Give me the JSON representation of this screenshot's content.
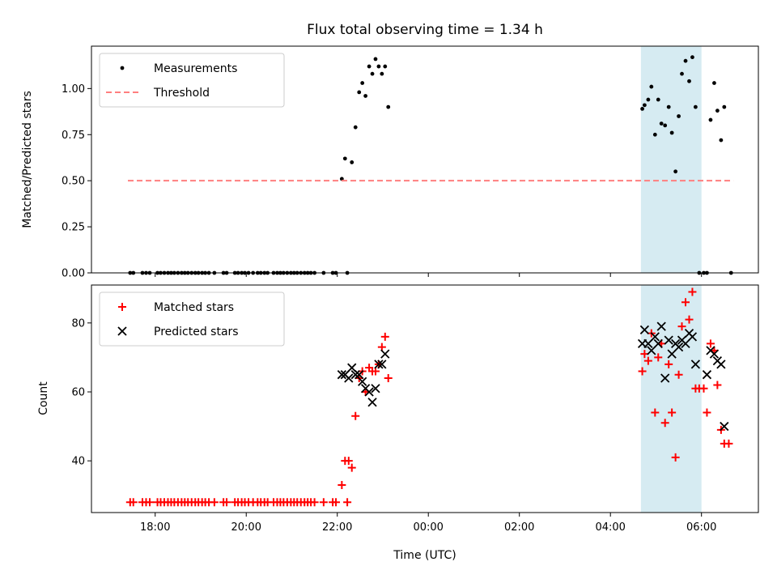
{
  "chart_data": [
    {
      "type": "scatter",
      "title": "Flux total observing time = 1.34 h",
      "xlabel": "",
      "ylabel": "Matched/Predicted stars",
      "ylim": [
        0,
        1.23
      ],
      "x_unit": "hours relative to 00:00 UTC",
      "xlim": [
        -7.4,
        7.25
      ],
      "yticks": [
        "0.00",
        "0.25",
        "0.50",
        "0.75",
        "1.00"
      ],
      "ytick_values": [
        0,
        0.25,
        0.5,
        0.75,
        1.0
      ],
      "legend_location": "upper left",
      "highlight_span": [
        4.67,
        6.0
      ],
      "highlight_color": "#add8e6",
      "series": [
        {
          "name": "Measurements",
          "kind": "dots",
          "color": "#000000",
          "points": [
            [
              -6.55,
              0
            ],
            [
              -6.48,
              0
            ],
            [
              -6.28,
              0
            ],
            [
              -6.2,
              0
            ],
            [
              -6.12,
              0
            ],
            [
              -5.95,
              0
            ],
            [
              -5.88,
              0
            ],
            [
              -5.8,
              0
            ],
            [
              -5.72,
              0
            ],
            [
              -5.65,
              0
            ],
            [
              -5.58,
              0
            ],
            [
              -5.5,
              0
            ],
            [
              -5.42,
              0
            ],
            [
              -5.35,
              0
            ],
            [
              -5.28,
              0
            ],
            [
              -5.2,
              0
            ],
            [
              -5.12,
              0
            ],
            [
              -5.05,
              0
            ],
            [
              -4.97,
              0
            ],
            [
              -4.9,
              0
            ],
            [
              -4.82,
              0
            ],
            [
              -4.7,
              0
            ],
            [
              -4.5,
              0
            ],
            [
              -4.43,
              0
            ],
            [
              -4.25,
              0
            ],
            [
              -4.18,
              0
            ],
            [
              -4.1,
              0
            ],
            [
              -4.03,
              0
            ],
            [
              -3.95,
              0
            ],
            [
              -3.85,
              0
            ],
            [
              -3.75,
              0
            ],
            [
              -3.68,
              0
            ],
            [
              -3.6,
              0
            ],
            [
              -3.53,
              0
            ],
            [
              -3.4,
              0
            ],
            [
              -3.32,
              0
            ],
            [
              -3.25,
              0
            ],
            [
              -3.18,
              0
            ],
            [
              -3.1,
              0
            ],
            [
              -3.02,
              0
            ],
            [
              -2.95,
              0
            ],
            [
              -2.88,
              0
            ],
            [
              -2.8,
              0
            ],
            [
              -2.72,
              0
            ],
            [
              -2.65,
              0
            ],
            [
              -2.58,
              0
            ],
            [
              -2.5,
              0
            ],
            [
              -2.3,
              0
            ],
            [
              -2.1,
              0
            ],
            [
              -2.03,
              0
            ],
            [
              -1.78,
              0
            ],
            [
              -1.9,
              0.51
            ],
            [
              -1.83,
              0.62
            ],
            [
              -1.68,
              0.6
            ],
            [
              -1.6,
              0.79
            ],
            [
              -1.52,
              0.98
            ],
            [
              -1.45,
              1.03
            ],
            [
              -1.38,
              0.96
            ],
            [
              -1.3,
              1.12
            ],
            [
              -1.23,
              1.08
            ],
            [
              -1.16,
              1.16
            ],
            [
              -1.09,
              1.12
            ],
            [
              -1.02,
              1.08
            ],
            [
              -0.95,
              1.12
            ],
            [
              -0.88,
              0.9
            ],
            [
              4.7,
              0.89
            ],
            [
              4.75,
              0.91
            ],
            [
              4.83,
              0.94
            ],
            [
              4.9,
              1.01
            ],
            [
              4.98,
              0.75
            ],
            [
              5.05,
              0.94
            ],
            [
              5.12,
              0.81
            ],
            [
              5.2,
              0.8
            ],
            [
              5.28,
              0.9
            ],
            [
              5.35,
              0.76
            ],
            [
              5.43,
              0.55
            ],
            [
              5.5,
              0.85
            ],
            [
              5.57,
              1.08
            ],
            [
              5.65,
              1.15
            ],
            [
              5.73,
              1.04
            ],
            [
              5.8,
              1.17
            ],
            [
              5.87,
              0.9
            ],
            [
              5.95,
              0
            ],
            [
              6.05,
              0
            ],
            [
              6.12,
              0
            ],
            [
              6.2,
              0.83
            ],
            [
              6.28,
              1.03
            ],
            [
              6.35,
              0.88
            ],
            [
              6.43,
              0.72
            ],
            [
              6.5,
              0.9
            ],
            [
              6.65,
              0
            ]
          ]
        },
        {
          "name": "Threshold",
          "kind": "dashed-line",
          "color": "#ff7f7f",
          "x": [
            -6.6,
            6.7
          ],
          "y": [
            0.5,
            0.5
          ]
        }
      ]
    },
    {
      "type": "scatter",
      "title": "",
      "xlabel": "Time (UTC)",
      "ylabel": "Count",
      "ylim": [
        25,
        91
      ],
      "x_unit": "hours relative to 00:00 UTC",
      "xlim": [
        -7.4,
        7.25
      ],
      "xticks": [
        "18:00",
        "20:00",
        "22:00",
        "00:00",
        "02:00",
        "04:00",
        "06:00"
      ],
      "xtick_values": [
        -6,
        -4,
        -2,
        0,
        2,
        4,
        6
      ],
      "yticks": [
        "40",
        "60",
        "80"
      ],
      "ytick_values": [
        40,
        60,
        80
      ],
      "legend_location": "upper left",
      "highlight_span": [
        4.67,
        6.0
      ],
      "highlight_color": "#add8e6",
      "series": [
        {
          "name": "Matched stars",
          "kind": "plus",
          "color": "#ff0000",
          "points": [
            [
              -6.55,
              28
            ],
            [
              -6.48,
              28
            ],
            [
              -6.28,
              28
            ],
            [
              -6.2,
              28
            ],
            [
              -6.12,
              28
            ],
            [
              -5.95,
              28
            ],
            [
              -5.88,
              28
            ],
            [
              -5.8,
              28
            ],
            [
              -5.72,
              28
            ],
            [
              -5.65,
              28
            ],
            [
              -5.58,
              28
            ],
            [
              -5.5,
              28
            ],
            [
              -5.42,
              28
            ],
            [
              -5.35,
              28
            ],
            [
              -5.28,
              28
            ],
            [
              -5.2,
              28
            ],
            [
              -5.12,
              28
            ],
            [
              -5.05,
              28
            ],
            [
              -4.97,
              28
            ],
            [
              -4.9,
              28
            ],
            [
              -4.82,
              28
            ],
            [
              -4.7,
              28
            ],
            [
              -4.5,
              28
            ],
            [
              -4.43,
              28
            ],
            [
              -4.25,
              28
            ],
            [
              -4.18,
              28
            ],
            [
              -4.1,
              28
            ],
            [
              -4.03,
              28
            ],
            [
              -3.95,
              28
            ],
            [
              -3.85,
              28
            ],
            [
              -3.75,
              28
            ],
            [
              -3.68,
              28
            ],
            [
              -3.6,
              28
            ],
            [
              -3.53,
              28
            ],
            [
              -3.4,
              28
            ],
            [
              -3.32,
              28
            ],
            [
              -3.25,
              28
            ],
            [
              -3.18,
              28
            ],
            [
              -3.1,
              28
            ],
            [
              -3.02,
              28
            ],
            [
              -2.95,
              28
            ],
            [
              -2.88,
              28
            ],
            [
              -2.8,
              28
            ],
            [
              -2.72,
              28
            ],
            [
              -2.65,
              28
            ],
            [
              -2.58,
              28
            ],
            [
              -2.5,
              28
            ],
            [
              -2.3,
              28
            ],
            [
              -2.1,
              28
            ],
            [
              -2.03,
              28
            ],
            [
              -1.78,
              28
            ],
            [
              -1.9,
              33
            ],
            [
              -1.83,
              40
            ],
            [
              -1.75,
              40
            ],
            [
              -1.68,
              38
            ],
            [
              -1.6,
              53
            ],
            [
              -1.52,
              64
            ],
            [
              -1.45,
              66
            ],
            [
              -1.38,
              60
            ],
            [
              -1.3,
              67
            ],
            [
              -1.23,
              66
            ],
            [
              -1.16,
              66
            ],
            [
              -1.09,
              68
            ],
            [
              -1.02,
              73
            ],
            [
              -0.95,
              76
            ],
            [
              -0.88,
              64
            ],
            [
              4.7,
              66
            ],
            [
              4.75,
              71
            ],
            [
              4.83,
              69
            ],
            [
              4.9,
              77
            ],
            [
              4.98,
              54
            ],
            [
              5.05,
              70
            ],
            [
              5.12,
              74
            ],
            [
              5.2,
              51
            ],
            [
              5.28,
              68
            ],
            [
              5.35,
              54
            ],
            [
              5.43,
              41
            ],
            [
              5.5,
              65
            ],
            [
              5.57,
              79
            ],
            [
              5.65,
              86
            ],
            [
              5.73,
              81
            ],
            [
              5.8,
              89
            ],
            [
              5.87,
              61
            ],
            [
              5.95,
              61
            ],
            [
              6.05,
              61
            ],
            [
              6.12,
              54
            ],
            [
              6.2,
              74
            ],
            [
              6.28,
              72
            ],
            [
              6.35,
              62
            ],
            [
              6.43,
              49
            ],
            [
              6.5,
              45
            ],
            [
              6.6,
              45
            ]
          ]
        },
        {
          "name": "Predicted stars",
          "kind": "cross",
          "color": "#000000",
          "points": [
            [
              -1.9,
              65
            ],
            [
              -1.83,
              65
            ],
            [
              -1.75,
              64
            ],
            [
              -1.68,
              67
            ],
            [
              -1.6,
              65
            ],
            [
              -1.52,
              65
            ],
            [
              -1.45,
              63
            ],
            [
              -1.38,
              61
            ],
            [
              -1.3,
              60
            ],
            [
              -1.23,
              57
            ],
            [
              -1.16,
              61
            ],
            [
              -1.09,
              68
            ],
            [
              -1.02,
              68
            ],
            [
              -0.95,
              71
            ],
            [
              4.7,
              74
            ],
            [
              4.75,
              78
            ],
            [
              4.83,
              74
            ],
            [
              4.9,
              72
            ],
            [
              4.98,
              76
            ],
            [
              5.05,
              74
            ],
            [
              5.12,
              79
            ],
            [
              5.2,
              64
            ],
            [
              5.28,
              75
            ],
            [
              5.35,
              71
            ],
            [
              5.43,
              74
            ],
            [
              5.5,
              73
            ],
            [
              5.57,
              75
            ],
            [
              5.65,
              74
            ],
            [
              5.73,
              77
            ],
            [
              5.8,
              76
            ],
            [
              5.87,
              68
            ],
            [
              6.12,
              65
            ],
            [
              6.2,
              72
            ],
            [
              6.28,
              71
            ],
            [
              6.35,
              69
            ],
            [
              6.43,
              68
            ],
            [
              6.5,
              50
            ]
          ]
        }
      ]
    }
  ]
}
